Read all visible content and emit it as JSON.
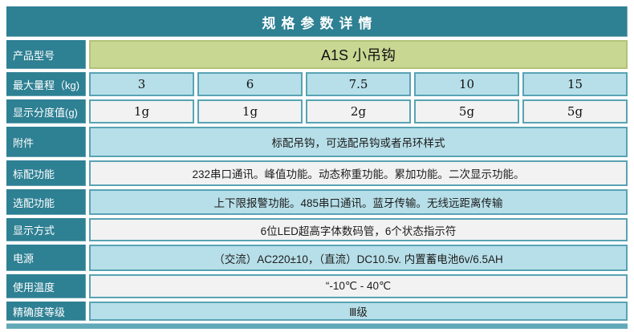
{
  "title": "规格参数详情",
  "colors": {
    "teal": "#2e8093",
    "cell_border": "#58a3b4",
    "blue": "#b7dfe9",
    "white_cell": "#f1f2f1",
    "green": "#c8d893",
    "green_border": "#b2c377",
    "bottom_bar": "#61a9b8"
  },
  "table": {
    "rows": [
      {
        "label": "产品型号",
        "value": "A1S 小吊钩",
        "type": "green"
      },
      {
        "label": "最大量程（kg)",
        "values": [
          "3",
          "6",
          "7.5",
          "10",
          "15"
        ],
        "type": "blue"
      },
      {
        "label": "显示分度值(g)",
        "values": [
          "1g",
          "1g",
          "2g",
          "5g",
          "5g"
        ],
        "type": "white"
      },
      {
        "label": "附件",
        "value": "标配吊钩，可选配吊钩或者吊环样式",
        "type": "blue"
      },
      {
        "label": "标配功能",
        "value": "232串口通讯。峰值功能。动态称重功能。累加功能。二次显示功能。",
        "type": "white"
      },
      {
        "label": "选配功能",
        "value": "上下限报警功能。485串口通讯。蓝牙传输。无线远距离传输",
        "type": "blue"
      },
      {
        "label": "显示方式",
        "value": "6位LED超高字体数码管，6个状态指示符",
        "type": "white"
      },
      {
        "label": "电源",
        "value": "（交流）AC220±10，（直流）DC10.5v. 内置蓄电池6v/6.5AH",
        "type": "blue"
      },
      {
        "label": "使用温度",
        "value": "“-10℃  - 40℃",
        "type": "white"
      },
      {
        "label": "精确度等级",
        "value": "Ⅲ级",
        "type": "blue"
      }
    ]
  }
}
